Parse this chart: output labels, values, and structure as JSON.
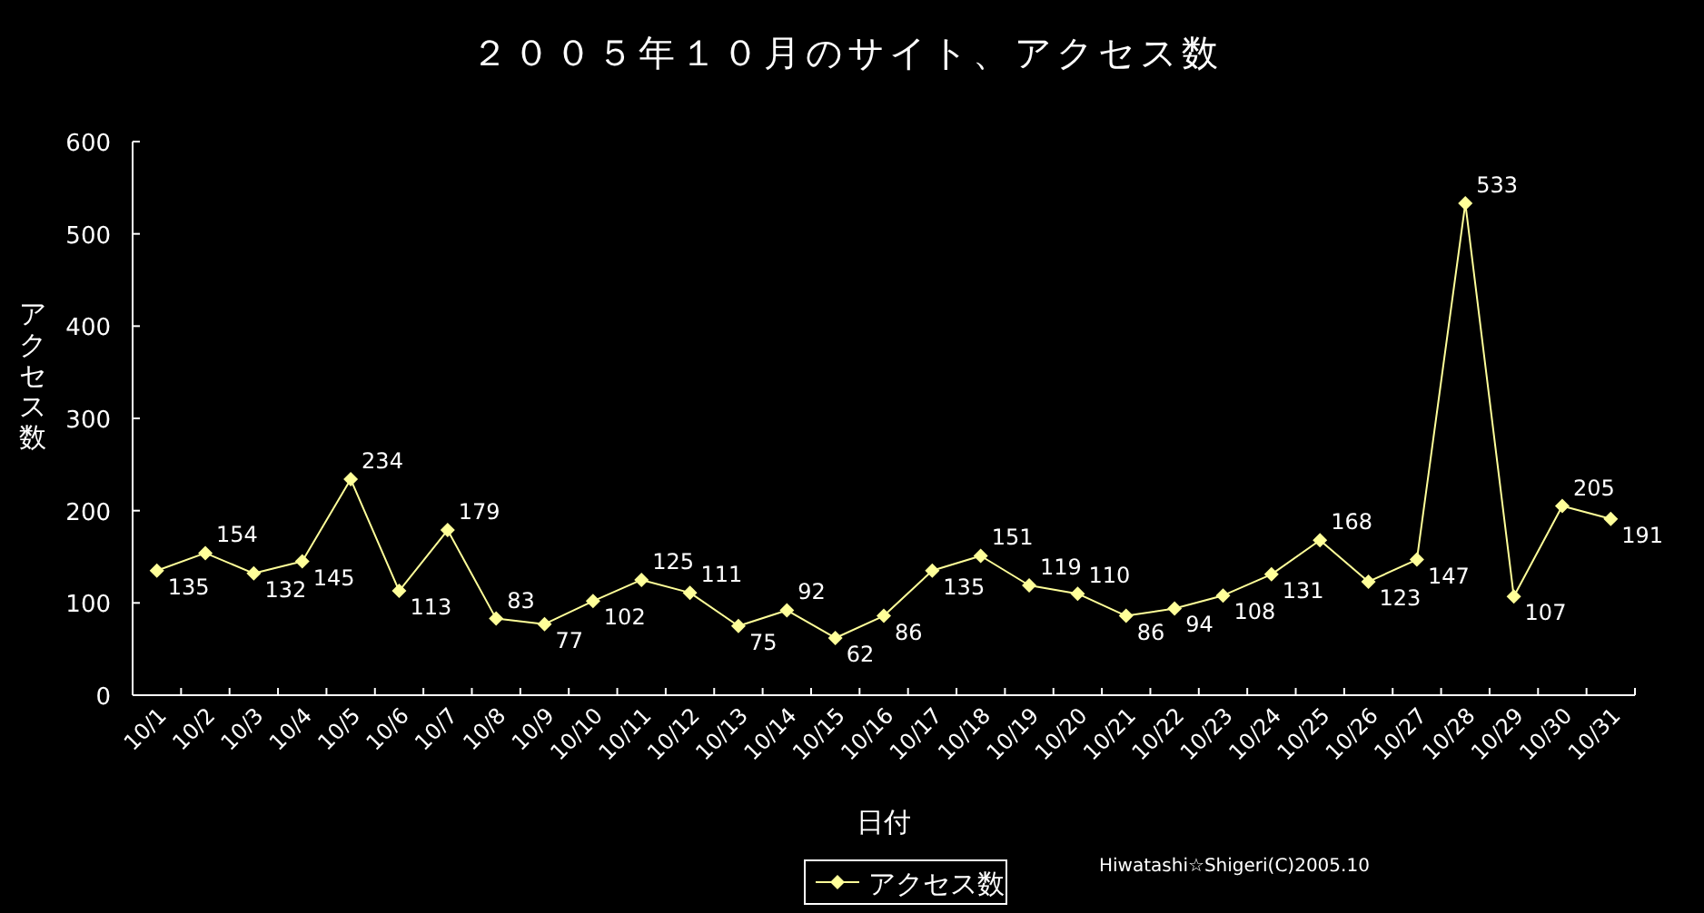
{
  "chart_data": {
    "type": "line",
    "title": "２００５年１０月のサイト、アクセス数",
    "xlabel": "日付",
    "ylabel": "アクセス数",
    "categories": [
      "10/1",
      "10/2",
      "10/3",
      "10/4",
      "10/5",
      "10/6",
      "10/7",
      "10/8",
      "10/9",
      "10/10",
      "10/11",
      "10/12",
      "10/13",
      "10/14",
      "10/15",
      "10/16",
      "10/17",
      "10/18",
      "10/19",
      "10/20",
      "10/21",
      "10/22",
      "10/23",
      "10/24",
      "10/25",
      "10/26",
      "10/27",
      "10/28",
      "10/29",
      "10/30",
      "10/31"
    ],
    "series": [
      {
        "name": "アクセス数",
        "color": "#ffff99",
        "values": [
          135,
          154,
          132,
          145,
          234,
          113,
          179,
          83,
          77,
          102,
          125,
          111,
          75,
          92,
          62,
          86,
          135,
          151,
          119,
          110,
          86,
          94,
          108,
          131,
          168,
          123,
          147,
          533,
          107,
          205,
          191
        ]
      }
    ],
    "ylim": [
      0,
      600
    ],
    "yticks": [
      0,
      100,
      200,
      300,
      400,
      500,
      600
    ],
    "data_labels": true,
    "marker": "diamond",
    "line_style": "solid",
    "legend": "bottom",
    "grid": false,
    "annotations": [
      "Hiwatashi☆Shigeri(C)2005.10"
    ]
  }
}
